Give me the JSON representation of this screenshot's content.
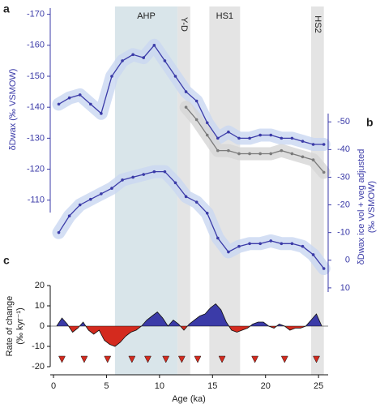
{
  "chart_data": [
    {
      "type": "line",
      "panel_labels": [
        "a",
        "b"
      ],
      "y_label": "δDwax (‰ VSMOW)",
      "y2_label": [
        "δDwax ice vol + veg adjusted",
        "(‰ VSMOW)"
      ],
      "invert_y": true,
      "xlim": [
        0,
        25.6
      ],
      "ylim": [
        -172,
        -106
      ],
      "yticks": [
        -170,
        -160,
        -150,
        -140,
        -130,
        -120,
        -110
      ],
      "y2lim": [
        -53,
        11.5
      ],
      "y2ticks": [
        -50,
        -40,
        -30,
        -20,
        -10,
        0,
        10
      ],
      "bands": [
        {
          "label": "AHP",
          "start": 5.8,
          "end": 11.7,
          "color": "#d9e5ea"
        },
        {
          "label": "Y-D",
          "start": 11.7,
          "end": 12.9,
          "color": "#e4e4e4"
        },
        {
          "label": "HS1",
          "start": 14.7,
          "end": 17.6,
          "color": "#e4e4e4"
        },
        {
          "label": "HS2",
          "start": 24.3,
          "end": 25.5,
          "color": "#e4e4e4"
        }
      ],
      "x": [
        0.5,
        1.5,
        2.5,
        3.5,
        4.5,
        5.5,
        6.5,
        7.5,
        8.5,
        9.5,
        10.5,
        11.5,
        12.5,
        13.5,
        14.5,
        15.5,
        16.5,
        17.5,
        18.5,
        19.5,
        20.5,
        21.5,
        22.5,
        23.5,
        24.5,
        25.5
      ],
      "series": [
        {
          "color": "#3b3ba8",
          "band_color": "#c9d7f1",
          "values": [
            -141,
            -143,
            -144,
            -141,
            -138,
            -150,
            -155,
            -157,
            -156,
            -160,
            -155,
            -150,
            -145,
            -142,
            -135,
            -130,
            -132,
            -130,
            -130,
            -131,
            -131,
            -130,
            -130,
            -129,
            -128,
            -128
          ]
        },
        {
          "color": "#7a7a7a",
          "band_color": "#d6d6d6",
          "values": [
            null,
            null,
            null,
            null,
            null,
            null,
            null,
            null,
            null,
            null,
            null,
            null,
            -140,
            -136,
            -131,
            -126,
            -126,
            -125,
            -125,
            -125,
            -125,
            -126,
            -125,
            -124,
            -123,
            -119
          ]
        },
        {
          "axis": "y2",
          "color": "#3b3ba8",
          "band_color": "#c9d7f1",
          "values": [
            -10,
            -16,
            -20,
            -22,
            -24,
            -26,
            -29,
            -30,
            -31,
            -32,
            -32,
            -28,
            -23,
            -21,
            -17,
            -8,
            -3,
            -5,
            -6,
            -6,
            -7,
            -6,
            -6,
            -5,
            -2,
            3
          ]
        }
      ]
    },
    {
      "type": "area",
      "panel_label": "c",
      "y_label": [
        "Rate of change",
        "(‰ kyr⁻¹)"
      ],
      "x_label": "Age (ka)",
      "xlim": [
        0,
        25.6
      ],
      "xticks": [
        0,
        5,
        10,
        15,
        20,
        25
      ],
      "ylim": [
        -20,
        20
      ],
      "yticks": [
        -20,
        -10,
        0,
        10,
        20
      ],
      "positive_color": "#3b3ba8",
      "negative_color": "#d42a1e",
      "x": [
        0.3,
        0.8,
        1.3,
        1.8,
        2.3,
        2.8,
        3.3,
        3.8,
        4.3,
        4.8,
        5.3,
        5.8,
        6.3,
        6.8,
        7.3,
        7.8,
        8.3,
        8.8,
        9.3,
        9.8,
        10.3,
        10.8,
        11.3,
        11.8,
        12.3,
        12.8,
        13.3,
        13.8,
        14.3,
        14.8,
        15.3,
        15.8,
        16.3,
        16.8,
        17.3,
        17.8,
        18.3,
        18.8,
        19.3,
        19.8,
        20.3,
        20.8,
        21.3,
        21.8,
        22.3,
        22.8,
        23.3,
        23.8,
        24.3,
        24.8,
        25.3
      ],
      "values": [
        0,
        4,
        1,
        -3,
        -1,
        2,
        -2,
        -4,
        -2,
        -7,
        -9,
        -10,
        -8,
        -5,
        -3,
        -2,
        0,
        3,
        5,
        7,
        4,
        0,
        3,
        1,
        -2,
        1,
        3,
        5,
        6,
        9,
        11,
        8,
        2,
        -2,
        -3,
        -2,
        -1,
        1,
        2,
        2,
        0,
        -1,
        1,
        0,
        -2,
        -1,
        -1,
        0,
        3,
        6,
        0
      ],
      "markers_x": [
        0.8,
        2.9,
        5.1,
        7.4,
        8.9,
        10.6,
        12.1,
        13.6,
        15.9,
        19.0,
        21.8,
        24.8
      ],
      "marker_color": "#d42a1e"
    }
  ]
}
